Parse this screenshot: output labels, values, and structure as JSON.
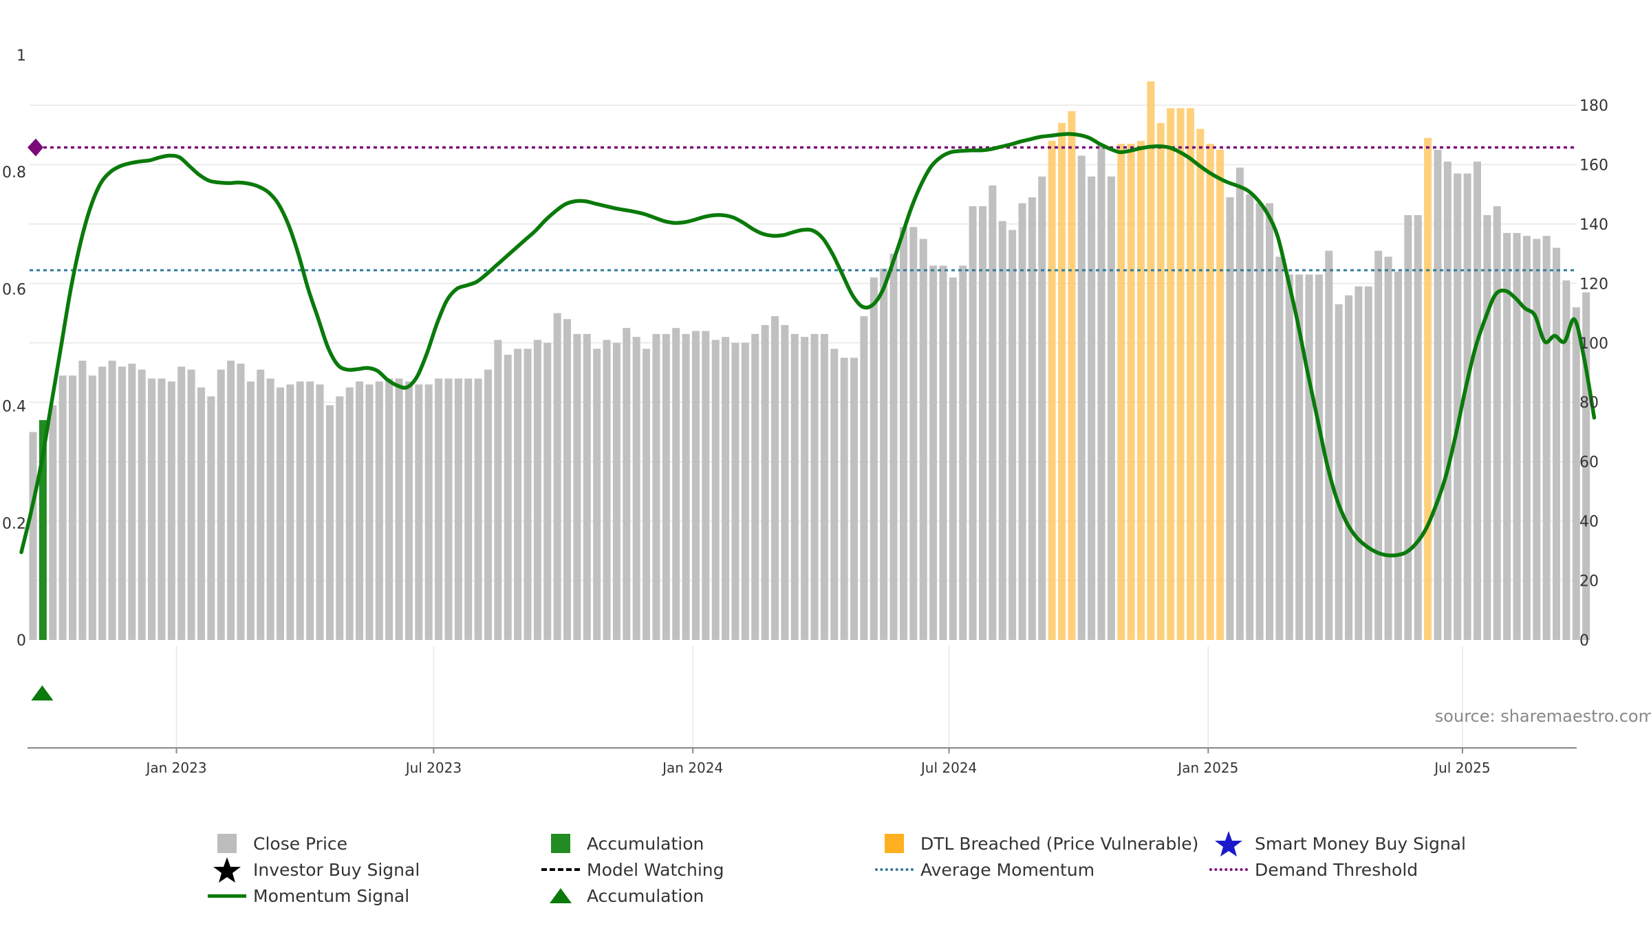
{
  "chart_data": {
    "type": "bar+line",
    "source": "source: sharemaestro.com",
    "left_axis": {
      "range": [
        0,
        1
      ],
      "ticks": [
        "0",
        "0.2",
        "0.4",
        "0.6",
        "0.8",
        "1"
      ],
      "tick_values": [
        0,
        0.2,
        0.4,
        0.6,
        0.8,
        1
      ]
    },
    "right_axis": {
      "range": [
        0,
        197
      ],
      "ticks": [
        "0",
        "20",
        "40",
        "60",
        "80",
        "100",
        "120",
        "140",
        "160",
        "180"
      ],
      "tick_values": [
        0,
        20,
        40,
        60,
        80,
        100,
        120,
        140,
        160,
        180
      ]
    },
    "x_ticks": [
      {
        "label": "Jan 2023",
        "week": 14.5
      },
      {
        "label": "Jul 2023",
        "week": 40.5
      },
      {
        "label": "Jan 2024",
        "week": 66.7
      },
      {
        "label": "Jul 2024",
        "week": 92.6
      },
      {
        "label": "Jan 2025",
        "week": 118.8
      },
      {
        "label": "Jul 2025",
        "week": 144.5
      }
    ],
    "weeks": 158,
    "close_prices": [
      70,
      74,
      79,
      89,
      89,
      94,
      89,
      92,
      94,
      92,
      93,
      91,
      88,
      88,
      87,
      92,
      91,
      85,
      82,
      91,
      94,
      93,
      87,
      91,
      88,
      85,
      86,
      87,
      87,
      86,
      79,
      82,
      85,
      87,
      86,
      87,
      88,
      88,
      87,
      86,
      86,
      88,
      88,
      88,
      88,
      88,
      91,
      101,
      96,
      98,
      98,
      101,
      100,
      110,
      108,
      103,
      103,
      98,
      101,
      100,
      105,
      102,
      98,
      103,
      103,
      105,
      103,
      104,
      104,
      101,
      102,
      100,
      100,
      103,
      106,
      109,
      106,
      103,
      102,
      103,
      103,
      98,
      95,
      95,
      109,
      122,
      125,
      130,
      139,
      139,
      135,
      126,
      126,
      122,
      126,
      146,
      146,
      153,
      141,
      138,
      147,
      149,
      156,
      168,
      174,
      178,
      163,
      156,
      167,
      156,
      167,
      167,
      168,
      188,
      174,
      179,
      179,
      179,
      172,
      167,
      165,
      149,
      159,
      150,
      147,
      147,
      129,
      123,
      123,
      123,
      123,
      131,
      113,
      116,
      119,
      119,
      131,
      129,
      124,
      143,
      143,
      169,
      165,
      161,
      157,
      157,
      161,
      143,
      146,
      137,
      137,
      136,
      135,
      136,
      132,
      121,
      112,
      117
    ],
    "breach_weeks": [
      103,
      104,
      105,
      110,
      111,
      112,
      113,
      114,
      115,
      116,
      117,
      118,
      119,
      120,
      141
    ],
    "accumulation_weeks": [
      1
    ],
    "accumulation_markers": [
      1
    ],
    "momentum": [
      [
        0,
        0.15
      ],
      [
        1,
        0.22
      ],
      [
        2,
        0.3
      ],
      [
        3,
        0.4
      ],
      [
        4,
        0.5
      ],
      [
        5,
        0.6
      ],
      [
        6,
        0.68
      ],
      [
        7,
        0.74
      ],
      [
        8,
        0.78
      ],
      [
        9,
        0.8
      ],
      [
        10,
        0.81
      ],
      [
        11,
        0.815
      ],
      [
        12,
        0.818
      ],
      [
        13,
        0.82
      ],
      [
        14,
        0.825
      ],
      [
        15,
        0.828
      ],
      [
        16,
        0.825
      ],
      [
        17,
        0.81
      ],
      [
        18,
        0.795
      ],
      [
        19,
        0.785
      ],
      [
        20,
        0.782
      ],
      [
        21,
        0.781
      ],
      [
        22,
        0.782
      ],
      [
        23,
        0.78
      ],
      [
        24,
        0.775
      ],
      [
        25,
        0.765
      ],
      [
        26,
        0.745
      ],
      [
        27,
        0.71
      ],
      [
        28,
        0.66
      ],
      [
        29,
        0.6
      ],
      [
        30,
        0.55
      ],
      [
        31,
        0.5
      ],
      [
        32,
        0.47
      ],
      [
        33,
        0.462
      ],
      [
        34,
        0.463
      ],
      [
        35,
        0.465
      ],
      [
        36,
        0.46
      ],
      [
        37,
        0.445
      ],
      [
        38,
        0.435
      ],
      [
        39,
        0.432
      ],
      [
        40,
        0.45
      ],
      [
        41,
        0.49
      ],
      [
        42,
        0.54
      ],
      [
        43,
        0.58
      ],
      [
        44,
        0.6
      ],
      [
        45,
        0.606
      ],
      [
        46,
        0.612
      ],
      [
        47,
        0.625
      ],
      [
        48,
        0.64
      ],
      [
        49,
        0.655
      ],
      [
        50,
        0.67
      ],
      [
        51,
        0.685
      ],
      [
        52,
        0.7
      ],
      [
        53,
        0.718
      ],
      [
        54,
        0.733
      ],
      [
        55,
        0.745
      ],
      [
        56,
        0.75
      ],
      [
        57,
        0.75
      ],
      [
        58,
        0.746
      ],
      [
        59,
        0.742
      ],
      [
        60,
        0.738
      ],
      [
        61,
        0.735
      ],
      [
        62,
        0.732
      ],
      [
        63,
        0.728
      ],
      [
        64,
        0.722
      ],
      [
        65,
        0.716
      ],
      [
        66,
        0.713
      ],
      [
        67,
        0.714
      ],
      [
        68,
        0.718
      ],
      [
        69,
        0.723
      ],
      [
        70,
        0.726
      ],
      [
        71,
        0.726
      ],
      [
        72,
        0.722
      ],
      [
        73,
        0.713
      ],
      [
        74,
        0.702
      ],
      [
        75,
        0.694
      ],
      [
        76,
        0.691
      ],
      [
        77,
        0.692
      ],
      [
        78,
        0.697
      ],
      [
        79,
        0.701
      ],
      [
        80,
        0.7
      ],
      [
        81,
        0.687
      ],
      [
        82,
        0.66
      ],
      [
        83,
        0.625
      ],
      [
        84,
        0.59
      ],
      [
        85,
        0.57
      ],
      [
        86,
        0.572
      ],
      [
        87,
        0.595
      ],
      [
        88,
        0.64
      ],
      [
        89,
        0.69
      ],
      [
        90,
        0.74
      ],
      [
        91,
        0.78
      ],
      [
        92,
        0.81
      ],
      [
        93,
        0.826
      ],
      [
        94,
        0.834
      ],
      [
        95,
        0.836
      ],
      [
        96,
        0.837
      ],
      [
        97,
        0.837
      ],
      [
        98,
        0.839
      ],
      [
        99,
        0.843
      ],
      [
        100,
        0.847
      ],
      [
        101,
        0.852
      ],
      [
        102,
        0.856
      ],
      [
        103,
        0.86
      ],
      [
        104,
        0.862
      ],
      [
        105,
        0.864
      ],
      [
        106,
        0.865
      ],
      [
        107,
        0.863
      ],
      [
        108,
        0.858
      ],
      [
        109,
        0.848
      ],
      [
        110,
        0.84
      ],
      [
        111,
        0.834
      ],
      [
        112,
        0.836
      ],
      [
        113,
        0.84
      ],
      [
        114,
        0.843
      ],
      [
        115,
        0.844
      ],
      [
        116,
        0.842
      ],
      [
        117,
        0.835
      ],
      [
        118,
        0.825
      ],
      [
        119,
        0.812
      ],
      [
        120,
        0.8
      ],
      [
        121,
        0.79
      ],
      [
        122,
        0.782
      ],
      [
        123,
        0.776
      ],
      [
        124,
        0.768
      ],
      [
        125,
        0.752
      ],
      [
        126,
        0.728
      ],
      [
        127,
        0.69
      ],
      [
        128,
        0.62
      ],
      [
        129,
        0.545
      ],
      [
        130,
        0.46
      ],
      [
        131,
        0.38
      ],
      [
        132,
        0.3
      ],
      [
        133,
        0.24
      ],
      [
        134,
        0.2
      ],
      [
        135,
        0.175
      ],
      [
        136,
        0.16
      ],
      [
        137,
        0.15
      ],
      [
        138,
        0.145
      ],
      [
        139,
        0.145
      ],
      [
        140,
        0.15
      ],
      [
        141,
        0.165
      ],
      [
        142,
        0.19
      ],
      [
        143,
        0.23
      ],
      [
        144,
        0.28
      ],
      [
        145,
        0.35
      ],
      [
        146,
        0.43
      ],
      [
        147,
        0.5
      ],
      [
        148,
        0.55
      ],
      [
        149,
        0.59
      ],
      [
        150,
        0.597
      ],
      [
        151,
        0.585
      ],
      [
        152,
        0.567
      ],
      [
        153,
        0.555
      ],
      [
        154,
        0.51
      ],
      [
        155,
        0.52
      ],
      [
        156,
        0.51
      ],
      [
        157,
        0.548
      ],
      [
        158,
        0.48
      ],
      [
        159,
        0.38
      ]
    ],
    "average_momentum": 0.632,
    "demand_threshold": 0.842,
    "colors": {
      "close_price": "#c0c0c0",
      "accumulation": "#228b22",
      "breach": "#ffc864",
      "momentum": "#0a7a0a",
      "momentum_faded": "#5a9a5a",
      "average_momentum": "#2e7a9a",
      "demand_threshold": "#7a0a7a",
      "smart_money": "#1a1acc",
      "investor_buy": "#000000",
      "accumulation_marker": "#0a7a0a"
    }
  },
  "legend": {
    "close_price": "Close Price",
    "accumulation_bar": "Accumulation",
    "dtl_breached": "DTL Breached (Price Vulnerable)",
    "smart_money": "Smart Money Buy Signal",
    "investor_buy": "Investor Buy Signal",
    "model_watching": "Model Watching",
    "average_momentum": "Average Momentum",
    "demand_threshold": "Demand Threshold",
    "momentum_signal": "Momentum Signal",
    "accumulation_marker": "Accumulation"
  }
}
